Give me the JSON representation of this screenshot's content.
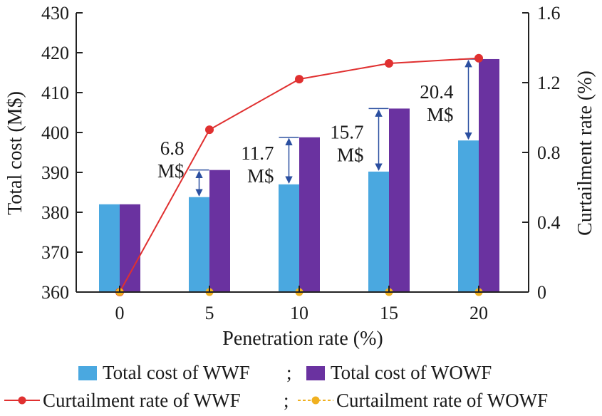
{
  "chart_data": {
    "type": "bar+line",
    "categories": [
      "0",
      "5",
      "10",
      "15",
      "20"
    ],
    "x": [
      0,
      5,
      10,
      15,
      20
    ],
    "xlabel": "Penetration rate (%)",
    "ylabel_left": "Total cost (M$)",
    "ylabel_right": "Curtailment rate (%)",
    "ylim_left": [
      360,
      430
    ],
    "ylim_right": [
      0,
      1.6
    ],
    "yticks_left": [
      360,
      370,
      380,
      390,
      400,
      410,
      420,
      430
    ],
    "yticks_right": [
      "0",
      "0.4",
      "0.8",
      "1.2",
      "1.6"
    ],
    "yticks_right_values": [
      0,
      0.4,
      0.8,
      1.2,
      1.6
    ],
    "grid": false,
    "bar_series": [
      {
        "name": "Total cost of WWF",
        "color": "#4aa8e0",
        "values": [
          382,
          383.8,
          387,
          390.2,
          398
        ]
      },
      {
        "name": "Total cost of WOWF",
        "color": "#6a32a0",
        "values": [
          382,
          390.6,
          398.8,
          406,
          418.4
        ]
      }
    ],
    "line_series": [
      {
        "name": "Curtailment rate of WWF",
        "color": "#e03030",
        "values": [
          0,
          0.93,
          1.22,
          1.31,
          1.34
        ]
      },
      {
        "name": "Curtailment rate of WOWF",
        "color": "#f0b020",
        "values": [
          0,
          0,
          0,
          0,
          0
        ]
      }
    ],
    "annotations": [
      {
        "category": "5",
        "lines": [
          "6.8",
          "M$"
        ]
      },
      {
        "category": "10",
        "lines": [
          "11.7",
          "M$"
        ]
      },
      {
        "category": "15",
        "lines": [
          "15.7",
          "M$"
        ]
      },
      {
        "category": "20",
        "lines": [
          "20.4",
          "M$"
        ]
      }
    ],
    "legend_position": "bottom",
    "legend_row1_sep": ";",
    "legend_row2_sep": ";"
  }
}
